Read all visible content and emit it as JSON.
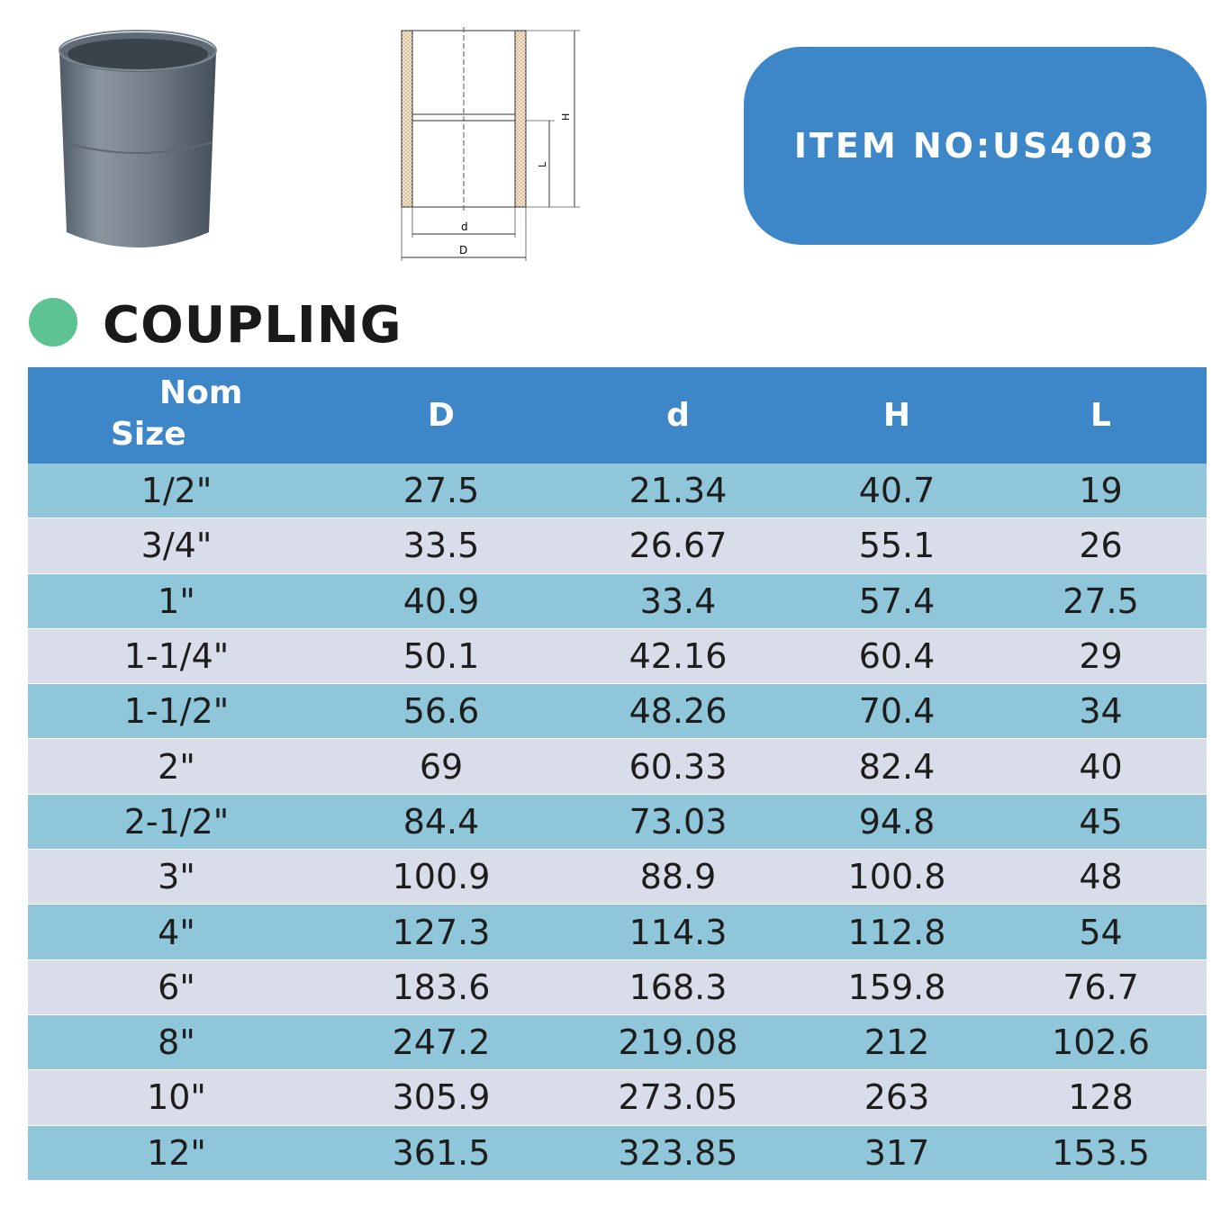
{
  "item_box": {
    "text": "ITEM NO:US4003"
  },
  "heading": {
    "title": "COUPLING"
  },
  "drawing": {
    "label_d": "d",
    "label_D": "D",
    "label_H": "H",
    "label_L": "L"
  },
  "table": {
    "headers": {
      "nom_line1": "Nom",
      "nom_line2": "Size",
      "D": "D",
      "d": "d",
      "H": "H",
      "L": "L"
    },
    "rows": [
      [
        "1/2\"",
        "27.5",
        "21.34",
        "40.7",
        "19"
      ],
      [
        "3/4\"",
        "33.5",
        "26.67",
        "55.1",
        "26"
      ],
      [
        "1\"",
        "40.9",
        "33.4",
        "57.4",
        "27.5"
      ],
      [
        "1-1/4\"",
        "50.1",
        "42.16",
        "60.4",
        "29"
      ],
      [
        "1-1/2\"",
        "56.6",
        "48.26",
        "70.4",
        "34"
      ],
      [
        "2\"",
        "69",
        "60.33",
        "82.4",
        "40"
      ],
      [
        "2-1/2\"",
        "84.4",
        "73.03",
        "94.8",
        "45"
      ],
      [
        "3\"",
        "100.9",
        "88.9",
        "100.8",
        "48"
      ],
      [
        "4\"",
        "127.3",
        "114.3",
        "112.8",
        "54"
      ],
      [
        "6\"",
        "183.6",
        "168.3",
        "159.8",
        "76.7"
      ],
      [
        "8\"",
        "247.2",
        "219.08",
        "212",
        "102.6"
      ],
      [
        "10\"",
        "305.9",
        "273.05",
        "263",
        "128"
      ],
      [
        "12\"",
        "361.5",
        "323.85",
        "317",
        "153.5"
      ]
    ]
  },
  "colors": {
    "header_blue": "#3d87c8",
    "row_cyan": "#8fc6d9",
    "row_lavender": "#d9dde9",
    "dot_green": "#5ec393"
  }
}
